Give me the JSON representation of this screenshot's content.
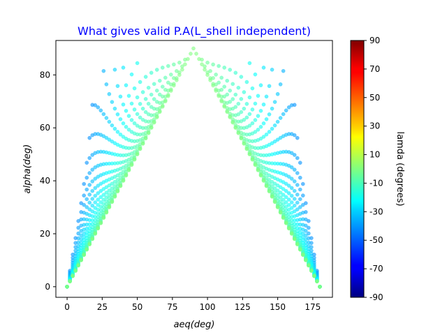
{
  "chart_data": {
    "type": "scatter",
    "title": "What gives valid P.A(L_shell independent)",
    "title_color": "#0000ff",
    "xlabel": "aeq(deg)",
    "ylabel": "alpha(deg)",
    "xlim": [
      -8,
      189
    ],
    "ylim": [
      -4,
      93
    ],
    "xticks": [
      0,
      25,
      50,
      75,
      100,
      125,
      150,
      175
    ],
    "yticks": [
      0,
      20,
      40,
      60,
      80
    ],
    "grid": false,
    "colormap": "jet",
    "marker_alpha": 0.6,
    "colorbar": {
      "label": "lamda (degrees)",
      "range": [
        -90,
        90
      ],
      "ticks": [
        -90,
        -70,
        -50,
        -30,
        -10,
        10,
        30,
        50,
        70,
        90
      ]
    },
    "series": [
      {
        "description_of_encoding": "Each point at (aeq, alpha) with color = lamda. Family of curves: for lamda L in -42..0 step 2, alpha(aeq) derived from sin^2(alpha) = sin^2(aeq)*B(L), mirrored about aeq=90.",
        "lamda_values": [
          -42,
          -40,
          -38,
          -36,
          -34,
          -32,
          -30,
          -28,
          -26,
          -24,
          -22,
          -20,
          -18,
          -16,
          -14,
          -12,
          -10,
          -8,
          -6,
          -4,
          -2,
          0
        ],
        "aeq_step": 2
      }
    ]
  }
}
